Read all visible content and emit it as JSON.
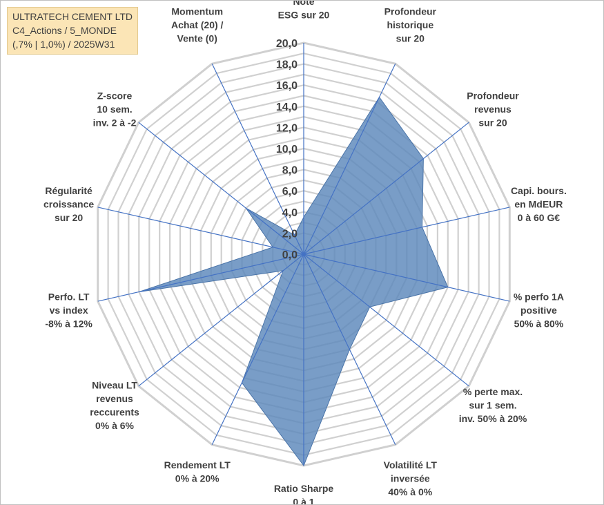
{
  "title_box": {
    "line1": "ULTRATECH CEMENT LTD",
    "line2": "C4_Actions / 5_MONDE",
    "line3": "(,7% | 1,0%) / 2025W31"
  },
  "colors": {
    "fill": "#5b87bb",
    "spoke": "#4472c4",
    "grid": "#d0d0d0",
    "title_bg": "#fbe5b6",
    "text": "#404040"
  },
  "chart_data": {
    "type": "radar",
    "rmax": 20,
    "grid_step": 1,
    "radial_ticks": [
      "0,0",
      "2,0",
      "4,0",
      "6,0",
      "8,0",
      "10,0",
      "12,0",
      "14,0",
      "16,0",
      "18,0",
      "20,0"
    ],
    "axes": [
      [
        "Note",
        "ESG sur 20"
      ],
      [
        "Profondeur",
        "historique",
        "sur 20"
      ],
      [
        "Profondeur",
        "revenus",
        "sur 20"
      ],
      [
        "Capi. bours.",
        "en MdEUR",
        "0 à 60 G€"
      ],
      [
        "% perfo 1A",
        "positive",
        "50% à 80%"
      ],
      [
        "% perte max.",
        "sur 1 sem.",
        "inv. 50% à 20%"
      ],
      [
        "Volatilité LT",
        "inversée",
        "40% à 0%"
      ],
      [
        "Ratio Sharpe",
        "0 à 1"
      ],
      [
        "Rendement LT",
        "0% à 20%"
      ],
      [
        "Niveau LT",
        "revenus",
        "reccurents",
        "0% à 6%"
      ],
      [
        "Perfo. LT",
        "vs index",
        "-8% à 12%"
      ],
      [
        "Régularité",
        "croissance",
        "sur 20"
      ],
      [
        "Z-score",
        "10 sem.",
        "inv. 2 à -2"
      ],
      [
        "Momentum",
        "Achat (20) /",
        "Vente (0)"
      ]
    ],
    "values": [
      3.5,
      16.5,
      14.5,
      11.5,
      14.0,
      8.0,
      10.0,
      20.0,
      13.5,
      2.5,
      16.0,
      3.0,
      7.0,
      2.0
    ]
  }
}
